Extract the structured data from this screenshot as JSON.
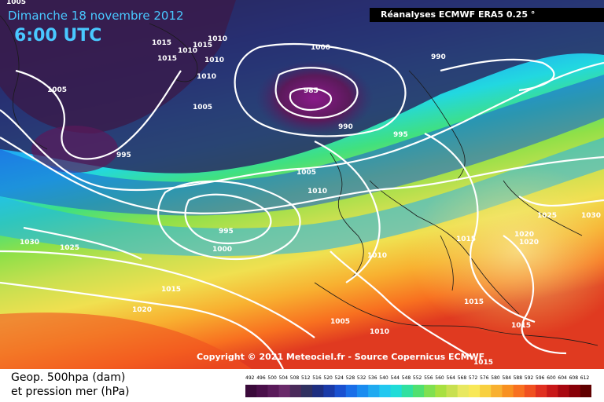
{
  "title": {
    "date": "Dimanche 18 novembre 2012",
    "time": "6:00 UTC"
  },
  "source": "Réanalyses ECMWF ERA5 0.25 °",
  "copyright": "Copyright © 2021 Meteociel.fr - Source Copernicus ECMWF",
  "legend": {
    "line1": "Geop. 500hpa (dam)",
    "line2": "et pression mer (hPa)",
    "scale_values": [
      "492",
      "496",
      "500",
      "504",
      "508",
      "512",
      "516",
      "520",
      "524",
      "528",
      "532",
      "536",
      "540",
      "544",
      "548",
      "552",
      "556",
      "560",
      "564",
      "568",
      "572",
      "576",
      "580",
      "584",
      "588",
      "592",
      "596",
      "600",
      "604",
      "608",
      "612"
    ],
    "scale_colors": [
      "#3a0a3a",
      "#4a0f4a",
      "#5a1a5a",
      "#6a2a6a",
      "#4a2a5a",
      "#303060",
      "#1e2e80",
      "#1a3aa8",
      "#1a50d0",
      "#1a6ee8",
      "#1a8cf0",
      "#20aaf0",
      "#22c8f0",
      "#20dcd8",
      "#30e0a0",
      "#50e070",
      "#80e050",
      "#a8e040",
      "#c8e050",
      "#e8e860",
      "#f8e858",
      "#f8d040",
      "#f8b030",
      "#f89020",
      "#f87020",
      "#f05020",
      "#e03020",
      "#c81818",
      "#a80810",
      "#880008",
      "#600000"
    ]
  },
  "isobar_labels": [
    {
      "text": "1005",
      "id": "p1"
    },
    {
      "text": "1015",
      "id": "p2"
    },
    {
      "text": "1010",
      "id": "p3"
    },
    {
      "text": "1015",
      "id": "p4"
    },
    {
      "text": "1015",
      "id": "p5"
    },
    {
      "text": "1010",
      "id": "p6"
    },
    {
      "text": "1010",
      "id": "p7"
    },
    {
      "text": "1010",
      "id": "p8"
    },
    {
      "text": "1000",
      "id": "p9"
    },
    {
      "text": "990",
      "id": "p10"
    },
    {
      "text": "1005",
      "id": "p11"
    },
    {
      "text": "985",
      "id": "p12"
    },
    {
      "text": "1005",
      "id": "p13"
    },
    {
      "text": "990",
      "id": "p14"
    },
    {
      "text": "995",
      "id": "p15"
    },
    {
      "text": "995",
      "id": "p16"
    },
    {
      "text": "1005",
      "id": "p17"
    },
    {
      "text": "1010",
      "id": "p18"
    },
    {
      "text": "995",
      "id": "p19"
    },
    {
      "text": "1000",
      "id": "p20"
    },
    {
      "text": "1030",
      "id": "p21"
    },
    {
      "text": "1025",
      "id": "p22"
    },
    {
      "text": "1015",
      "id": "p23"
    },
    {
      "text": "1020",
      "id": "p24"
    },
    {
      "text": "1010",
      "id": "p25"
    },
    {
      "text": "1015",
      "id": "p26"
    },
    {
      "text": "1025",
      "id": "p27"
    },
    {
      "text": "1030",
      "id": "p28"
    },
    {
      "text": "1020",
      "id": "p29"
    },
    {
      "text": "1020",
      "id": "p30"
    },
    {
      "text": "1015",
      "id": "p31"
    },
    {
      "text": "1005",
      "id": "p32"
    },
    {
      "text": "1010",
      "id": "p33"
    },
    {
      "text": "1015",
      "id": "p34"
    },
    {
      "text": "1015",
      "id": "p35"
    }
  ]
}
